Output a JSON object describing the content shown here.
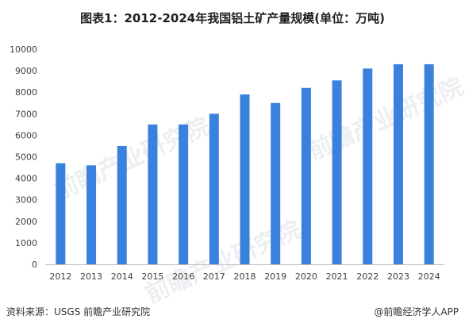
{
  "title": "图表1：2012-2024年我国铝土矿产量规模(单位：万吨)",
  "source": "资料来源：USGS 前瞻产业研究院",
  "brand": "@前瞻经济学人APP",
  "watermark": "前瞻产业研究院",
  "colors": {
    "bar": "#3a80dd",
    "axis_text": "#404040",
    "axis_line": "#bfbfbf"
  },
  "chart_data": {
    "type": "bar",
    "title": "图表1：2012-2024年我国铝土矿产量规模(单位：万吨)",
    "xlabel": "",
    "ylabel": "",
    "ylim": [
      0,
      10000
    ],
    "yticks": [
      0,
      1000,
      2000,
      3000,
      4000,
      5000,
      6000,
      7000,
      8000,
      9000,
      10000
    ],
    "grid": false,
    "legend": "none",
    "categories": [
      "2012",
      "2013",
      "2014",
      "2015",
      "2016",
      "2017",
      "2018",
      "2019",
      "2020",
      "2021",
      "2022",
      "2023",
      "2024"
    ],
    "values": [
      4700,
      4600,
      5500,
      6500,
      6500,
      7000,
      7900,
      7500,
      8200,
      8550,
      9100,
      9300,
      9300
    ]
  }
}
